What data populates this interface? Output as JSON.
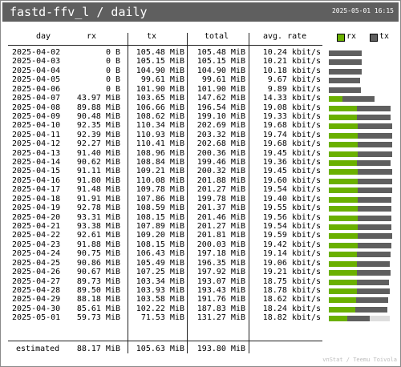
{
  "header": {
    "title": "fastd-ffv_l / daily",
    "timestamp": "2025-05-01 16:15"
  },
  "columns": {
    "day": "day",
    "rx": "rx",
    "tx": "tx",
    "total": "total",
    "rate": "avg. rate"
  },
  "legend": {
    "rx_label": "rx",
    "tx_label": "tx"
  },
  "colors": {
    "rx": "#6ab000",
    "tx": "#5f5f5f",
    "estimate": "#dedede",
    "header_bg": "#5f5f5f"
  },
  "rows": [
    {
      "day": "2025-04-02",
      "rx": "0 B",
      "tx": "105.48 MiB",
      "total": "105.48 MiB",
      "rate": "10.24 kbit/s",
      "rx_mib": 0,
      "tx_mib": 105.48
    },
    {
      "day": "2025-04-03",
      "rx": "0 B",
      "tx": "105.15 MiB",
      "total": "105.15 MiB",
      "rate": "10.21 kbit/s",
      "rx_mib": 0,
      "tx_mib": 105.15
    },
    {
      "day": "2025-04-04",
      "rx": "0 B",
      "tx": "104.90 MiB",
      "total": "104.90 MiB",
      "rate": "10.18 kbit/s",
      "rx_mib": 0,
      "tx_mib": 104.9
    },
    {
      "day": "2025-04-05",
      "rx": "0 B",
      "tx": "99.61 MiB",
      "total": "99.61 MiB",
      "rate": "9.67 kbit/s",
      "rx_mib": 0,
      "tx_mib": 99.61
    },
    {
      "day": "2025-04-06",
      "rx": "0 B",
      "tx": "101.90 MiB",
      "total": "101.90 MiB",
      "rate": "9.89 kbit/s",
      "rx_mib": 0,
      "tx_mib": 101.9
    },
    {
      "day": "2025-04-07",
      "rx": "43.97 MiB",
      "tx": "103.65 MiB",
      "total": "147.62 MiB",
      "rate": "14.33 kbit/s",
      "rx_mib": 43.97,
      "tx_mib": 103.65
    },
    {
      "day": "2025-04-08",
      "rx": "89.88 MiB",
      "tx": "106.66 MiB",
      "total": "196.54 MiB",
      "rate": "19.08 kbit/s",
      "rx_mib": 89.88,
      "tx_mib": 106.66
    },
    {
      "day": "2025-04-09",
      "rx": "90.48 MiB",
      "tx": "108.62 MiB",
      "total": "199.10 MiB",
      "rate": "19.33 kbit/s",
      "rx_mib": 90.48,
      "tx_mib": 108.62
    },
    {
      "day": "2025-04-10",
      "rx": "92.35 MiB",
      "tx": "110.34 MiB",
      "total": "202.69 MiB",
      "rate": "19.68 kbit/s",
      "rx_mib": 92.35,
      "tx_mib": 110.34
    },
    {
      "day": "2025-04-11",
      "rx": "92.39 MiB",
      "tx": "110.93 MiB",
      "total": "203.32 MiB",
      "rate": "19.74 kbit/s",
      "rx_mib": 92.39,
      "tx_mib": 110.93
    },
    {
      "day": "2025-04-12",
      "rx": "92.27 MiB",
      "tx": "110.41 MiB",
      "total": "202.68 MiB",
      "rate": "19.68 kbit/s",
      "rx_mib": 92.27,
      "tx_mib": 110.41
    },
    {
      "day": "2025-04-13",
      "rx": "91.40 MiB",
      "tx": "108.96 MiB",
      "total": "200.36 MiB",
      "rate": "19.45 kbit/s",
      "rx_mib": 91.4,
      "tx_mib": 108.96
    },
    {
      "day": "2025-04-14",
      "rx": "90.62 MiB",
      "tx": "108.84 MiB",
      "total": "199.46 MiB",
      "rate": "19.36 kbit/s",
      "rx_mib": 90.62,
      "tx_mib": 108.84
    },
    {
      "day": "2025-04-15",
      "rx": "91.11 MiB",
      "tx": "109.21 MiB",
      "total": "200.32 MiB",
      "rate": "19.45 kbit/s",
      "rx_mib": 91.11,
      "tx_mib": 109.21
    },
    {
      "day": "2025-04-16",
      "rx": "91.80 MiB",
      "tx": "110.08 MiB",
      "total": "201.88 MiB",
      "rate": "19.60 kbit/s",
      "rx_mib": 91.8,
      "tx_mib": 110.08
    },
    {
      "day": "2025-04-17",
      "rx": "91.48 MiB",
      "tx": "109.78 MiB",
      "total": "201.27 MiB",
      "rate": "19.54 kbit/s",
      "rx_mib": 91.48,
      "tx_mib": 109.78
    },
    {
      "day": "2025-04-18",
      "rx": "91.91 MiB",
      "tx": "107.86 MiB",
      "total": "199.78 MiB",
      "rate": "19.40 kbit/s",
      "rx_mib": 91.91,
      "tx_mib": 107.86
    },
    {
      "day": "2025-04-19",
      "rx": "92.78 MiB",
      "tx": "108.59 MiB",
      "total": "201.37 MiB",
      "rate": "19.55 kbit/s",
      "rx_mib": 92.78,
      "tx_mib": 108.59
    },
    {
      "day": "2025-04-20",
      "rx": "93.31 MiB",
      "tx": "108.15 MiB",
      "total": "201.46 MiB",
      "rate": "19.56 kbit/s",
      "rx_mib": 93.31,
      "tx_mib": 108.15
    },
    {
      "day": "2025-04-21",
      "rx": "93.38 MiB",
      "tx": "107.89 MiB",
      "total": "201.27 MiB",
      "rate": "19.54 kbit/s",
      "rx_mib": 93.38,
      "tx_mib": 107.89
    },
    {
      "day": "2025-04-22",
      "rx": "92.61 MiB",
      "tx": "109.20 MiB",
      "total": "201.81 MiB",
      "rate": "19.59 kbit/s",
      "rx_mib": 92.61,
      "tx_mib": 109.2
    },
    {
      "day": "2025-04-23",
      "rx": "91.88 MiB",
      "tx": "108.15 MiB",
      "total": "200.03 MiB",
      "rate": "19.42 kbit/s",
      "rx_mib": 91.88,
      "tx_mib": 108.15
    },
    {
      "day": "2025-04-24",
      "rx": "90.75 MiB",
      "tx": "106.43 MiB",
      "total": "197.18 MiB",
      "rate": "19.14 kbit/s",
      "rx_mib": 90.75,
      "tx_mib": 106.43
    },
    {
      "day": "2025-04-25",
      "rx": "90.86 MiB",
      "tx": "105.49 MiB",
      "total": "196.35 MiB",
      "rate": "19.06 kbit/s",
      "rx_mib": 90.86,
      "tx_mib": 105.49
    },
    {
      "day": "2025-04-26",
      "rx": "90.67 MiB",
      "tx": "107.25 MiB",
      "total": "197.92 MiB",
      "rate": "19.21 kbit/s",
      "rx_mib": 90.67,
      "tx_mib": 107.25
    },
    {
      "day": "2025-04-27",
      "rx": "89.73 MiB",
      "tx": "103.34 MiB",
      "total": "193.07 MiB",
      "rate": "18.75 kbit/s",
      "rx_mib": 89.73,
      "tx_mib": 103.34
    },
    {
      "day": "2025-04-28",
      "rx": "89.50 MiB",
      "tx": "103.93 MiB",
      "total": "193.43 MiB",
      "rate": "18.78 kbit/s",
      "rx_mib": 89.5,
      "tx_mib": 103.93
    },
    {
      "day": "2025-04-29",
      "rx": "88.18 MiB",
      "tx": "103.58 MiB",
      "total": "191.76 MiB",
      "rate": "18.62 kbit/s",
      "rx_mib": 88.18,
      "tx_mib": 103.58
    },
    {
      "day": "2025-04-30",
      "rx": "85.61 MiB",
      "tx": "102.22 MiB",
      "total": "187.83 MiB",
      "rate": "18.24 kbit/s",
      "rx_mib": 85.61,
      "tx_mib": 102.22
    },
    {
      "day": "2025-05-01",
      "rx": "59.73 MiB",
      "tx": "71.53 MiB",
      "total": "131.27 MiB",
      "rate": "18.82 kbit/s",
      "rx_mib": 59.73,
      "tx_mib": 71.53,
      "estimated_total_mib": 193.8
    }
  ],
  "estimated": {
    "label": "estimated",
    "rx": "88.17 MiB",
    "tx": "105.63 MiB",
    "total": "193.80 MiB"
  },
  "footer": "vnStat / Teemu Toivola"
}
